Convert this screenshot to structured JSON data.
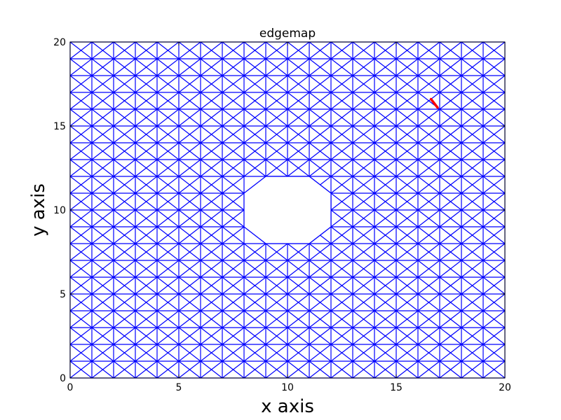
{
  "chart_data": {
    "type": "line",
    "title": "edgemap",
    "xlabel": "x axis",
    "ylabel": "y axis",
    "xlim": [
      0,
      20
    ],
    "ylim": [
      0,
      20
    ],
    "xticks": [
      0,
      5,
      10,
      15,
      20
    ],
    "yticks": [
      0,
      5,
      10,
      15,
      20
    ],
    "xtick_labels": [
      "0",
      "5",
      "10",
      "15",
      "20"
    ],
    "ytick_labels": [
      "0",
      "5",
      "10",
      "15",
      "20"
    ],
    "grid": false,
    "legend": "none",
    "mesh": {
      "color": "#0000ff",
      "x_nodes": [
        0,
        1,
        2,
        3,
        4,
        5,
        6,
        7,
        8,
        9,
        10,
        11,
        12,
        13,
        14,
        15,
        16,
        17,
        18,
        19,
        20
      ],
      "y_nodes": [
        0,
        1,
        2,
        3,
        4,
        5,
        6,
        7,
        8,
        9,
        10,
        11,
        12,
        13,
        14,
        15,
        16,
        17,
        18,
        19,
        20
      ],
      "hole": {
        "shape": "octagon",
        "vertices": [
          [
            9,
            8
          ],
          [
            11,
            8
          ],
          [
            12,
            9
          ],
          [
            12,
            11
          ],
          [
            11,
            12
          ],
          [
            9,
            12
          ],
          [
            8,
            11
          ],
          [
            8,
            9
          ]
        ]
      }
    },
    "highlight": {
      "color": "#ff0000",
      "segment": [
        [
          16.6,
          16.6
        ],
        [
          16.9,
          16.1
        ]
      ]
    }
  },
  "colors": {
    "mesh": "#0000ff",
    "highlight": "#ff0000",
    "axes": "#000000"
  }
}
